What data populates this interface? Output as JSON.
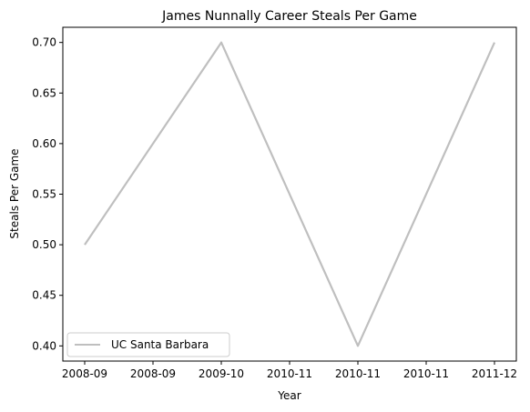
{
  "chart_data": {
    "type": "line",
    "title": "James Nunnally Career Steals Per Game",
    "xlabel": "Year",
    "ylabel": "Steals Per Game",
    "x": [
      "2008-09",
      "2009-10",
      "2010-11",
      "2011-12"
    ],
    "x_tick_labels": [
      "2008-09",
      "2008-09",
      "2009-10",
      "2010-11",
      "2010-11",
      "2010-11",
      "2011-12"
    ],
    "series": [
      {
        "name": "UC Santa Barbara",
        "values": [
          0.5,
          0.7,
          0.4,
          0.7
        ],
        "color": "#bfbfbf"
      }
    ],
    "y_ticks": [
      "0.40",
      "0.45",
      "0.50",
      "0.55",
      "0.60",
      "0.65",
      "0.70"
    ],
    "ylim": [
      0.385,
      0.715
    ],
    "grid": false,
    "legend_position": "lower-left"
  }
}
